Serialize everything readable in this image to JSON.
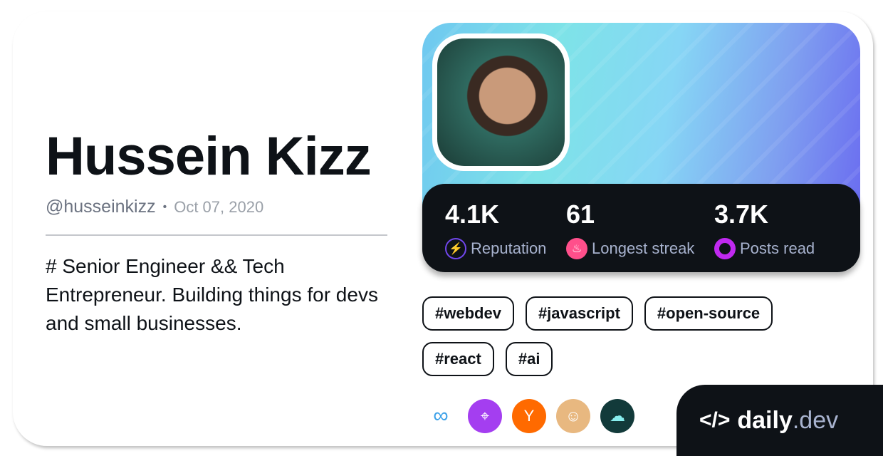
{
  "profile": {
    "name": "Hussein Kizz",
    "handle": "@husseinkizz",
    "separator": "•",
    "joined": "Oct 07, 2020",
    "bio": "# Senior Engineer && Tech Entrepreneur. Building things for devs and small businesses."
  },
  "stats": [
    {
      "value": "4.1K",
      "label": "Reputation",
      "icon": "lightning-icon",
      "color": "#7147ed"
    },
    {
      "value": "61",
      "label": "Longest streak",
      "icon": "flame-icon",
      "color": "#ff4f8b"
    },
    {
      "value": "3.7K",
      "label": "Posts read",
      "icon": "eye-icon",
      "color": "#c029f0"
    }
  ],
  "tags": [
    "#webdev",
    "#javascript",
    "#open-source",
    "#react",
    "#ai"
  ],
  "squads": [
    "infinity-squad",
    "target-squad",
    "ycombinator-squad",
    "devsquad",
    "brain-squad"
  ],
  "brand": {
    "name": "daily",
    ".dev": ".dev",
    "suffix": ".dev"
  }
}
